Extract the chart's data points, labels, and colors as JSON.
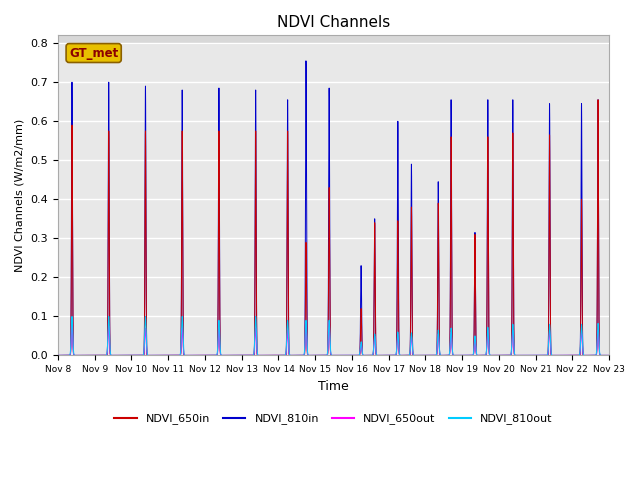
{
  "title": "NDVI Channels",
  "xlabel": "Time",
  "ylabel": "NDVI Channels (W/m2/mm)",
  "ylim": [
    0.0,
    0.82
  ],
  "xlim": [
    0,
    15
  ],
  "xtick_labels": [
    "Nov 8",
    "Nov 9",
    "Nov 10",
    "Nov 11",
    "Nov 12",
    "Nov 13",
    "Nov 14",
    "Nov 15",
    "Nov 16",
    "Nov 17",
    "Nov 18",
    "Nov 19",
    "Nov 20",
    "Nov 21",
    "Nov 22",
    "Nov 23"
  ],
  "xtick_positions": [
    0,
    1,
    2,
    3,
    4,
    5,
    6,
    7,
    8,
    9,
    10,
    11,
    12,
    13,
    14,
    15
  ],
  "colors": {
    "NDVI_650in": "#cc0000",
    "NDVI_810in": "#0000cc",
    "NDVI_650out": "#ff00ff",
    "NDVI_810out": "#00ccff"
  },
  "gt_met_label": "GT_met",
  "gt_met_bg": "#e8c000",
  "gt_met_text_color": "#8b0000",
  "plot_bg_color": "#e8e8e8",
  "fig_bg_color": "#ffffff",
  "legend_entries": [
    "NDVI_650in",
    "NDVI_810in",
    "NDVI_650out",
    "NDVI_810out"
  ],
  "daily_peaks": [
    [
      0.38,
      0.7,
      0.59,
      0.08,
      0.1
    ],
    [
      1.38,
      0.7,
      0.575,
      0.075,
      0.1
    ],
    [
      2.38,
      0.69,
      0.575,
      0.07,
      0.1
    ],
    [
      3.38,
      0.68,
      0.575,
      0.07,
      0.1
    ],
    [
      4.38,
      0.685,
      0.575,
      0.065,
      0.09
    ],
    [
      5.38,
      0.68,
      0.575,
      0.07,
      0.1
    ],
    [
      6.25,
      0.655,
      0.575,
      0.065,
      0.09
    ],
    [
      6.75,
      0.755,
      0.29,
      0.085,
      0.09
    ],
    [
      7.38,
      0.685,
      0.43,
      0.085,
      0.09
    ],
    [
      8.25,
      0.23,
      0.12,
      0.03,
      0.035
    ],
    [
      8.62,
      0.35,
      0.34,
      0.05,
      0.055
    ],
    [
      9.25,
      0.6,
      0.345,
      0.055,
      0.06
    ],
    [
      9.62,
      0.49,
      0.38,
      0.05,
      0.058
    ],
    [
      10.35,
      0.445,
      0.39,
      0.055,
      0.065
    ],
    [
      10.7,
      0.655,
      0.56,
      0.06,
      0.07
    ],
    [
      11.35,
      0.315,
      0.31,
      0.04,
      0.05
    ],
    [
      11.7,
      0.655,
      0.56,
      0.065,
      0.072
    ],
    [
      12.38,
      0.655,
      0.57,
      0.065,
      0.08
    ],
    [
      13.38,
      0.645,
      0.565,
      0.065,
      0.08
    ],
    [
      14.25,
      0.645,
      0.4,
      0.065,
      0.08
    ],
    [
      14.7,
      0.655,
      0.655,
      0.065,
      0.082
    ]
  ]
}
